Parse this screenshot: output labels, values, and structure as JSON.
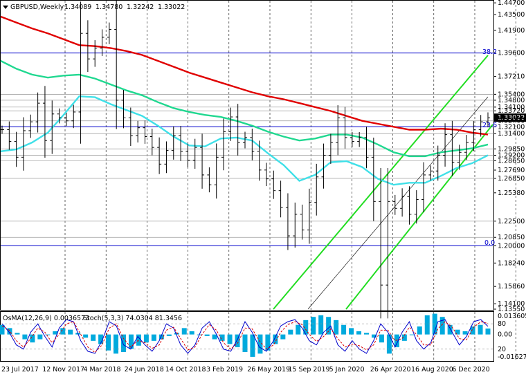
{
  "header": {
    "symbol": "GBPUSD,Weekly",
    "ohlc": [
      "1.34089",
      "1.34780",
      "1.32242",
      "1.33022"
    ]
  },
  "osma_label": "OsMA(12,26,9) 0.0036573",
  "stoch_label": "Stoch(5,3,3) 74.0304 81.3456",
  "fib_labels": [
    "38.2",
    "23.6",
    "0.0"
  ],
  "colors": {
    "bull_candle": "#000000",
    "bear_candle": "#000000",
    "ma_red": "#e00000",
    "ma_green": "#20d890",
    "ma_cyan": "#40e0e8",
    "level_line": "#0000cc",
    "channel": "#22dd22",
    "histogram": "#00aadd",
    "stoch_main": "#0000cc",
    "stoch_signal": "#dd0000",
    "grid": "#000000"
  },
  "chart_data": [
    {
      "type": "candlestick",
      "title": "GBPUSD,Weekly",
      "x_ticks": [
        "23 Jul 2017",
        "12 Nov 2017",
        "4 Mar 2018",
        "24 Jun 2018",
        "14 Oct 2018",
        "3 Feb 2019",
        "26 May 2019",
        "15 Sep 2019",
        "5 Jan 2020",
        "26 Apr 2020",
        "16 Aug 2020",
        "6 Dec 2020"
      ],
      "y_ticks": [
        "1.44700",
        "1.43500",
        "1.41900",
        "1.39600",
        "1.37210",
        "1.35400",
        "1.34800",
        "1.34100",
        "1.33720",
        "1.33022",
        "1.32700",
        "1.32100",
        "1.31400",
        "1.29850",
        "1.29200",
        "1.28650",
        "1.27690",
        "1.26850",
        "1.25380",
        "1.22500",
        "1.20850",
        "1.20000",
        "1.18240",
        "1.15860",
        "1.14100",
        "1.13550"
      ],
      "ylim": [
        1.1355,
        1.4485
      ],
      "current_price": 1.33022,
      "horizontal_levels": [
        1.396,
        1.354,
        1.348,
        1.341,
        1.3372,
        1.327,
        1.321,
        1.314,
        1.2985,
        1.292,
        1.2865,
        1.2685,
        1.225,
        1.2085,
        1.2
      ],
      "blue_levels": [
        1.396,
        1.321,
        1.2
      ],
      "fibonacci": {
        "38.2": 1.396,
        "23.6": 1.325,
        "0.0": 1.2
      },
      "moving_averages": [
        {
          "color": "red",
          "values": [
            1.433,
            1.427,
            1.421,
            1.416,
            1.41,
            1.404,
            1.403,
            1.401,
            1.398,
            1.394,
            1.388,
            1.382,
            1.376,
            1.371,
            1.366,
            1.361,
            1.356,
            1.352,
            1.349,
            1.345,
            1.341,
            1.337,
            1.332,
            1.327,
            1.324,
            1.321,
            1.318,
            1.318,
            1.319,
            1.318,
            1.315,
            1.313
          ]
        },
        {
          "color": "green",
          "values": [
            1.388,
            1.38,
            1.374,
            1.371,
            1.373,
            1.374,
            1.37,
            1.364,
            1.358,
            1.353,
            1.346,
            1.34,
            1.336,
            1.333,
            1.331,
            1.327,
            1.322,
            1.316,
            1.311,
            1.307,
            1.309,
            1.313,
            1.313,
            1.31,
            1.303,
            1.295,
            1.291,
            1.291,
            1.295,
            1.297,
            1.299,
            1.303
          ]
        },
        {
          "color": "cyan",
          "values": [
            1.296,
            1.298,
            1.305,
            1.315,
            1.333,
            1.352,
            1.351,
            1.344,
            1.338,
            1.332,
            1.322,
            1.311,
            1.302,
            1.301,
            1.309,
            1.31,
            1.307,
            1.294,
            1.282,
            1.266,
            1.272,
            1.285,
            1.286,
            1.28,
            1.268,
            1.262,
            1.264,
            1.264,
            1.271,
            1.279,
            1.284,
            1.292
          ]
        }
      ],
      "close_path": [
        1.318,
        1.306,
        1.29,
        1.317,
        1.326,
        1.345,
        1.307,
        1.334,
        1.33,
        1.327,
        1.336,
        1.416,
        1.39,
        1.401,
        1.412,
        1.42,
        1.348,
        1.33,
        1.312,
        1.32,
        1.311,
        1.3,
        1.283,
        1.297,
        1.312,
        1.296,
        1.287,
        1.3,
        1.272,
        1.262,
        1.29,
        1.316,
        1.331,
        1.305,
        1.31,
        1.296,
        1.277,
        1.268,
        1.256,
        1.239,
        1.21,
        1.232,
        1.216,
        1.244,
        1.27,
        1.292,
        1.305,
        1.33,
        1.31,
        1.306,
        1.31,
        1.29,
        1.245,
        1.16,
        1.245,
        1.238,
        1.25,
        1.232,
        1.247,
        1.272,
        1.276,
        1.292,
        1.313,
        1.285,
        1.295,
        1.305,
        1.318,
        1.326,
        1.33
      ]
    },
    {
      "type": "bar",
      "title": "OsMA(12,26,9)",
      "ylim": [
        -0.0162,
        0.0137
      ],
      "y_ticks": [
        "0.0136053",
        "0.00",
        "-0.016272"
      ],
      "values": [
        0.006,
        0.004,
        0.001,
        -0.003,
        -0.005,
        -0.003,
        0.0,
        0.002,
        0.004,
        0.003,
        0.001,
        -0.002,
        -0.004,
        -0.006,
        -0.01,
        -0.012,
        -0.011,
        -0.009,
        -0.007,
        -0.005,
        -0.004,
        -0.003,
        -0.001,
        0.001,
        0.004,
        0.002,
        0.0,
        -0.001,
        -0.003,
        -0.004,
        -0.006,
        -0.008,
        -0.011,
        -0.014,
        -0.012,
        -0.01,
        -0.006,
        -0.003,
        0.003,
        0.006,
        0.009,
        0.011,
        0.012,
        0.011,
        0.009,
        0.006,
        0.004,
        0.002,
        0.001,
        -0.002,
        -0.005,
        -0.012,
        -0.008,
        -0.004,
        0.0,
        0.005,
        0.012,
        0.013,
        0.011,
        0.006,
        0.003,
        0.002,
        0.005,
        0.006,
        0.0037
      ]
    },
    {
      "type": "line",
      "title": "Stoch(5,3,3)",
      "ylim": [
        0,
        100
      ],
      "y_ticks": [
        "80",
        "20"
      ],
      "series": [
        {
          "values": [
            80,
            60,
            30,
            20,
            60,
            80,
            50,
            25,
            70,
            90,
            85,
            40,
            15,
            10,
            40,
            85,
            75,
            30,
            20,
            50,
            30,
            15,
            40,
            80,
            70,
            30,
            10,
            30,
            70,
            85,
            55,
            20,
            15,
            45,
            85,
            60,
            25,
            15,
            40,
            75,
            85,
            90,
            70,
            40,
            30,
            60,
            75,
            30,
            15,
            40,
            20,
            10,
            40,
            80,
            60,
            25,
            60,
            85,
            40,
            20,
            35,
            85,
            90,
            60,
            30,
            50,
            85,
            90,
            74
          ]
        },
        {
          "values": [
            75,
            65,
            40,
            25,
            45,
            70,
            60,
            35,
            55,
            80,
            85,
            55,
            25,
            12,
            30,
            70,
            80,
            45,
            25,
            40,
            35,
            22,
            30,
            65,
            72,
            45,
            18,
            25,
            55,
            78,
            65,
            35,
            20,
            35,
            70,
            68,
            40,
            20,
            30,
            60,
            78,
            85,
            78,
            55,
            38,
            50,
            68,
            45,
            25,
            32,
            28,
            18,
            30,
            65,
            65,
            40,
            45,
            72,
            55,
            30,
            30,
            68,
            85,
            72,
            45,
            42,
            72,
            85,
            81
          ]
        }
      ]
    }
  ]
}
